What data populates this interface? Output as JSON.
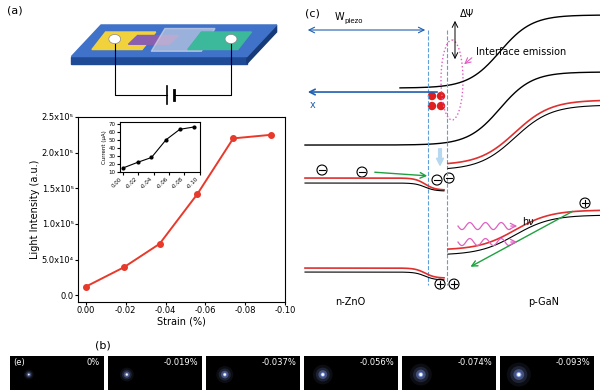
{
  "panels": {
    "a": "(a)",
    "b": "(b)",
    "c": "(c)",
    "e": "(e)"
  },
  "chart_data": [
    {
      "type": "line",
      "x_label": "Strain (%)",
      "y_label": "Light Intensity (a.u.)",
      "x": [
        0,
        -0.019,
        -0.037,
        -0.056,
        -0.074,
        -0.093
      ],
      "values": [
        12000,
        39000,
        72000,
        142000,
        220000,
        225000
      ],
      "color": "#e8392a",
      "marker": "circle",
      "line_style": "solid",
      "xlim": [
        0.004,
        -0.1
      ],
      "xticks": [
        {
          "value": 0,
          "label": "0.00"
        },
        {
          "value": -0.02,
          "label": "-0.02"
        },
        {
          "value": -0.04,
          "label": "-0.04"
        },
        {
          "value": -0.06,
          "label": "-0.06"
        },
        {
          "value": -0.08,
          "label": "-0.08"
        },
        {
          "value": -0.1,
          "label": "-0.10"
        }
      ],
      "ylim": [
        -10000,
        250000
      ],
      "yticks": [
        {
          "value": 0,
          "label": "0.0"
        },
        {
          "value": 50000,
          "label": "5.0x10⁴"
        },
        {
          "value": 100000,
          "label": "1.0x10⁵"
        },
        {
          "value": 150000,
          "label": "1.5x10⁵"
        },
        {
          "value": 200000,
          "label": "2.0x10⁵"
        },
        {
          "value": 250000,
          "label": "2.5x10⁵"
        }
      ]
    },
    {
      "type": "line",
      "y_label": "Current (μA)",
      "x": [
        0,
        -0.019,
        -0.037,
        -0.056,
        -0.074,
        -0.093
      ],
      "values": [
        15,
        22,
        28,
        50,
        63,
        66
      ],
      "color": "#000000",
      "marker": "circle",
      "line_style": "solid",
      "xlim": [
        0.004,
        -0.1
      ],
      "xticks": [
        {
          "value": 0,
          "label": "0.00"
        },
        {
          "value": -0.02,
          "label": "-0.02"
        },
        {
          "value": -0.04,
          "label": "-0.04"
        },
        {
          "value": -0.06,
          "label": "-0.06"
        },
        {
          "value": -0.08,
          "label": "-0.08"
        },
        {
          "value": -0.1,
          "label": "-0.10"
        }
      ],
      "ylim": [
        10,
        72
      ],
      "yticks": [
        10,
        20,
        30,
        40,
        50,
        60,
        70
      ]
    }
  ],
  "image_strip": {
    "labels": [
      "0%",
      "-0.019%",
      "-0.037%",
      "-0.056%",
      "-0.074%",
      "-0.093%"
    ]
  },
  "band_diagram": {
    "width_label": {
      "text": "W",
      "subscript": "piezo"
    },
    "barrier_label": "ΔΨ",
    "emission_label": "Interface emission",
    "axis_label": "x",
    "photon_label": "hν",
    "left_material": "n-ZnO",
    "right_material": "p-GaN"
  }
}
